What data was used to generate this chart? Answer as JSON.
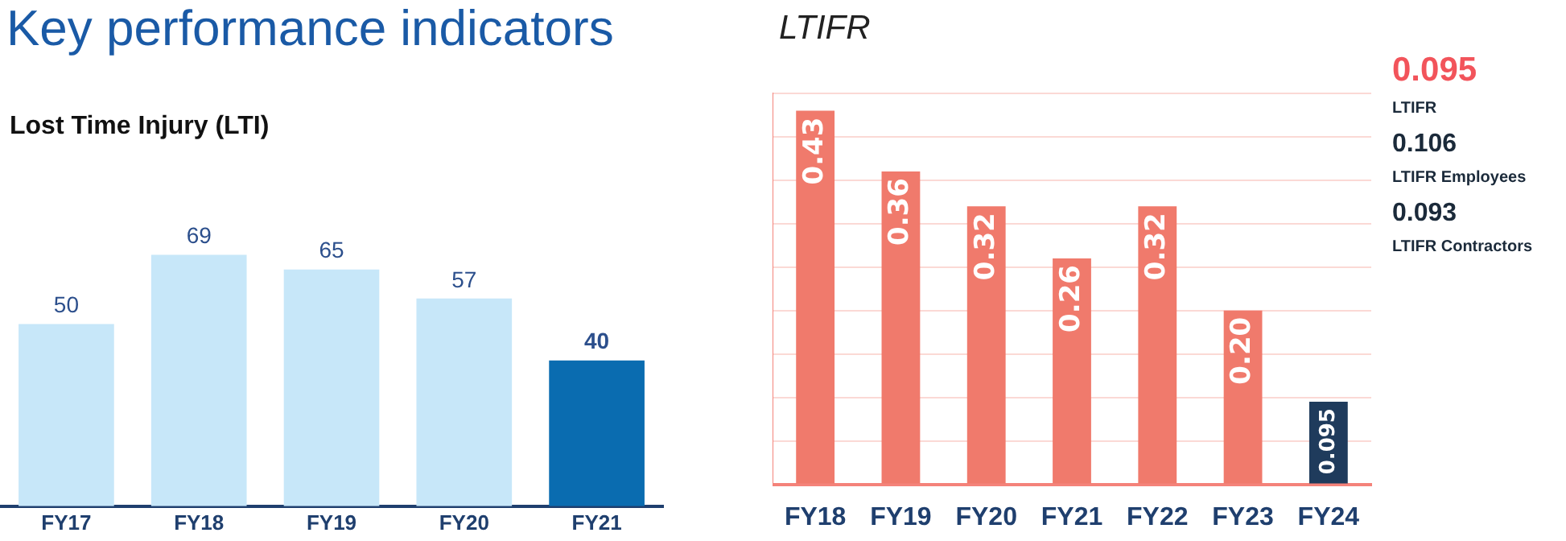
{
  "chart_data": [
    {
      "type": "bar",
      "title": "Key performance indicators",
      "subtitle": "Lost Time Injury (LTI)",
      "categories": [
        "FY17",
        "FY18",
        "FY19",
        "FY20",
        "FY21"
      ],
      "values": [
        50,
        69,
        65,
        57,
        40
      ],
      "colors": [
        "#c7e7f9",
        "#c7e7f9",
        "#c7e7f9",
        "#c7e7f9",
        "#0a6cb0"
      ],
      "data_labels": true,
      "grid": false,
      "tick_labels": "x",
      "legend": false
    },
    {
      "type": "bar",
      "title": "LTIFR",
      "categories": [
        "FY18",
        "FY19",
        "FY20",
        "FY21",
        "FY22",
        "FY23",
        "FY24"
      ],
      "values": [
        0.43,
        0.36,
        0.32,
        0.26,
        0.32,
        0.2,
        0.095
      ],
      "colors": [
        "#f07a6c",
        "#f07a6c",
        "#f07a6c",
        "#f07a6c",
        "#f07a6c",
        "#f07a6c",
        "#1f3b5c"
      ],
      "value_labels": [
        "0.43",
        "0.36",
        "0.32",
        "0.26",
        "0.32",
        "0.20",
        "0.095"
      ],
      "grid": "y",
      "tick_labels": "x",
      "legend": false,
      "annotations": [
        "0.095",
        "LTIFR",
        "0.106",
        "LTIFR Employees",
        "0.093",
        "LTIFR Contractors"
      ]
    }
  ]
}
